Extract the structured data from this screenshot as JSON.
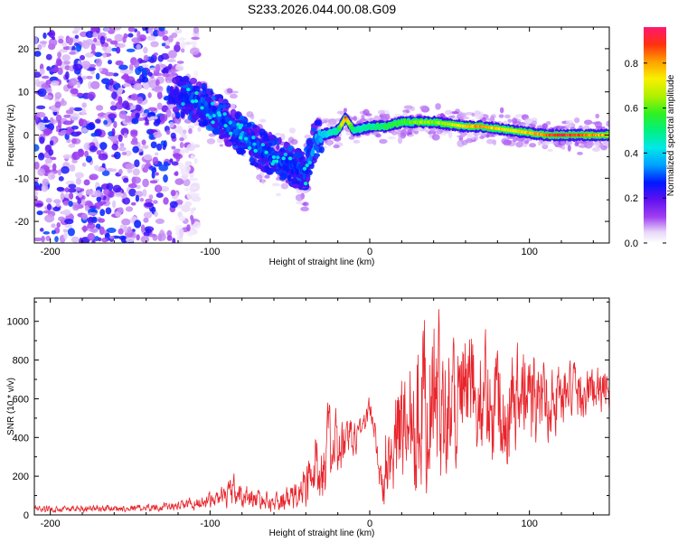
{
  "title": "S233.2026.044.00.08.G09",
  "chart_data": [
    {
      "type": "heatmap",
      "title": "S233.2026.044.00.08.G09",
      "xlabel": "Height of straight line (km)",
      "ylabel": "Frequency (Hz)",
      "xlim": [
        -210,
        150
      ],
      "ylim": [
        -25,
        25
      ],
      "xticks": [
        -200,
        -100,
        0,
        100
      ],
      "yticks": [
        -20,
        -10,
        0,
        10,
        20
      ],
      "colorbar": {
        "label": "Normalized spectral amplitude",
        "range": [
          0,
          0.96
        ],
        "ticks": [
          0.0,
          0.2,
          0.4,
          0.6,
          0.8
        ]
      },
      "ridge": {
        "x": [
          -120,
          -110,
          -100,
          -90,
          -80,
          -70,
          -60,
          -50,
          -40,
          -35,
          -30,
          -20,
          -15,
          -10,
          0,
          10,
          20,
          30,
          40,
          50,
          60,
          70,
          80,
          90,
          100,
          110,
          120,
          130,
          140,
          150
        ],
        "freq": [
          9,
          8,
          6,
          3,
          0,
          -3,
          -5,
          -7,
          -9,
          -2,
          0,
          1,
          4,
          1,
          2,
          2,
          3,
          3,
          3,
          2.5,
          2,
          2,
          1.5,
          1,
          0.5,
          0,
          0,
          0,
          0,
          0
        ],
        "amplitude": [
          0.25,
          0.3,
          0.3,
          0.3,
          0.35,
          0.3,
          0.3,
          0.3,
          0.3,
          0.35,
          0.4,
          0.5,
          0.9,
          0.5,
          0.5,
          0.55,
          0.6,
          0.65,
          0.65,
          0.7,
          0.8,
          0.85,
          0.8,
          0.75,
          0.8,
          0.85,
          0.95,
          0.9,
          0.85,
          0.8
        ]
      },
      "noise_region_x": [
        -210,
        -120
      ],
      "noise_freq_range": [
        -25,
        25
      ],
      "noise_amplitude": [
        0.05,
        0.2
      ]
    },
    {
      "type": "line",
      "xlabel": "Height of straight line (km)",
      "ylabel": "SNR (10 * v/v)",
      "xlim": [
        -210,
        150
      ],
      "ylim": [
        0,
        1120
      ],
      "xticks": [
        -200,
        -100,
        0,
        100
      ],
      "yticks": [
        0,
        200,
        400,
        600,
        800,
        1000
      ],
      "series": [
        {
          "name": "SNR",
          "color": "#e8242b",
          "envelope_x": [
            -210,
            -150,
            -120,
            -110,
            -90,
            -85,
            -80,
            -70,
            -60,
            -45,
            -40,
            -35,
            -30,
            -25,
            -20,
            -15,
            -10,
            -5,
            0,
            3,
            5,
            8,
            10,
            15,
            20,
            25,
            30,
            40,
            50,
            60,
            70,
            80,
            90,
            100,
            110,
            120,
            130,
            140,
            150
          ],
          "envelope_mean": [
            30,
            35,
            45,
            60,
            90,
            110,
            100,
            80,
            60,
            100,
            150,
            230,
            300,
            330,
            340,
            350,
            400,
            450,
            550,
            450,
            250,
            130,
            300,
            380,
            450,
            550,
            620,
            600,
            620,
            640,
            620,
            600,
            600,
            600,
            600,
            620,
            630,
            640,
            640
          ],
          "envelope_amp": [
            20,
            20,
            25,
            40,
            60,
            120,
            80,
            60,
            50,
            100,
            150,
            200,
            250,
            250,
            200,
            150,
            120,
            80,
            70,
            80,
            100,
            100,
            250,
            300,
            400,
            450,
            500,
            500,
            450,
            400,
            380,
            360,
            330,
            300,
            250,
            200,
            170,
            150,
            120
          ]
        }
      ]
    }
  ]
}
